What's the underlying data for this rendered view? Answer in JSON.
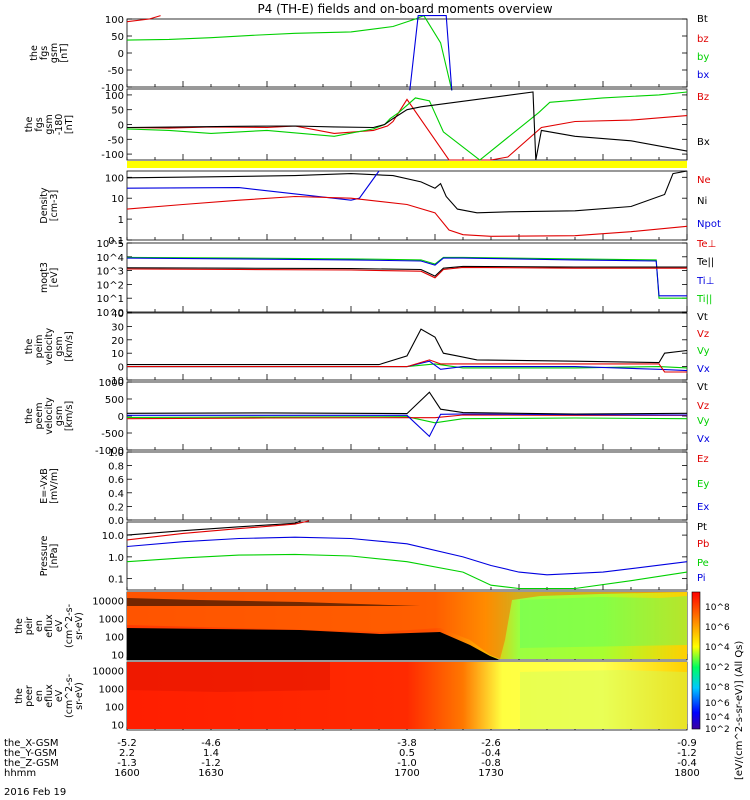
{
  "title": "P4 (TH-E) fields and on-board moments overview",
  "footer": {
    "rows": [
      {
        "label": "the_X-GSM",
        "values": [
          "-5.2",
          "-4.6",
          "-3.8",
          "-2.6",
          "-0.9"
        ]
      },
      {
        "label": "the_Y-GSM",
        "values": [
          "2.2",
          "1.4",
          "0.5",
          "-0.4",
          "-1.2"
        ]
      },
      {
        "label": "the_Z-GSM",
        "values": [
          "-1.3",
          "-1.2",
          "-1.0",
          "-0.8",
          "-0.4"
        ]
      },
      {
        "label": "hhmm",
        "values": [
          "1600",
          "1630",
          "1700",
          "1730",
          "1800"
        ]
      }
    ],
    "date": "2016 Feb 19"
  },
  "colorbar": {
    "label": "[eV/(cm^2-s-sr-eV)] (All Qs)",
    "ticks": [
      "10^8",
      "10^6",
      "10^4",
      "10^2"
    ],
    "ticks2": [
      "10^8",
      "10^6",
      "10^4",
      "10^2"
    ]
  },
  "colors": {
    "black": "#000000",
    "red": "#e00000",
    "green": "#00d000",
    "blue": "#0000e0",
    "yellow": "#ffff00"
  },
  "chart_data": [
    {
      "type": "line",
      "ylabel_lines": [
        "the",
        "fgs",
        "gsm",
        "[nT]"
      ],
      "ylim": [
        -100,
        100
      ],
      "yticks": [
        "100",
        "50",
        "0",
        "-50",
        "-100"
      ],
      "legend": [
        {
          "name": "Bt",
          "color": "#000000"
        },
        {
          "name": "bz",
          "color": "#e00000"
        },
        {
          "name": "by",
          "color": "#00d000"
        },
        {
          "name": "bx",
          "color": "#0000e0"
        }
      ],
      "series": [
        {
          "name": "bz",
          "color": "#e00000",
          "x": [
            1600,
            1608,
            1612
          ],
          "y": [
            92,
            100,
            110
          ]
        },
        {
          "name": "by",
          "color": "#00d000",
          "x": [
            1600,
            1615,
            1630,
            1645,
            1660,
            1680,
            1695,
            1703,
            1706,
            1712,
            1716
          ],
          "y": [
            38,
            40,
            45,
            52,
            58,
            62,
            78,
            100,
            110,
            30,
            -110
          ]
        },
        {
          "name": "bx",
          "color": "#0000e0",
          "x": [
            1701,
            1704,
            1714,
            1716
          ],
          "y": [
            -110,
            110,
            110,
            -110
          ]
        }
      ]
    },
    {
      "type": "line",
      "ylabel_lines": [
        "the",
        "fgs",
        "gsm",
        "-180",
        "[nT]"
      ],
      "ylim": [
        -120,
        120
      ],
      "yticks": [
        "100",
        "50",
        "0",
        "-50",
        "-100"
      ],
      "legend": [
        {
          "name": "Bz",
          "color": "#e00000"
        },
        {
          "name": "Bx",
          "color": "#000000"
        }
      ],
      "series": [
        {
          "name": "Bz",
          "color": "#e00000",
          "x": [
            1600,
            1615,
            1630,
            1650,
            1660,
            1674,
            1688,
            1693,
            1695,
            1697,
            1700,
            1715,
            1730,
            1736,
            1748,
            1760,
            1780,
            1800
          ],
          "y": [
            -10,
            -12,
            -8,
            -10,
            -5,
            -30,
            -20,
            -5,
            10,
            40,
            85,
            -120,
            -120,
            -110,
            -10,
            10,
            15,
            30
          ]
        },
        {
          "name": "by",
          "color": "#00d000",
          "x": [
            1600,
            1615,
            1630,
            1650,
            1674,
            1688,
            1692,
            1694,
            1697,
            1700,
            1703,
            1708,
            1713,
            1726,
            1747,
            1751,
            1770,
            1790,
            1800
          ],
          "y": [
            -15,
            -20,
            -30,
            -20,
            -40,
            -15,
            0,
            20,
            40,
            65,
            90,
            80,
            -25,
            -120,
            40,
            75,
            90,
            100,
            110
          ]
        },
        {
          "name": "Bx",
          "color": "#000000",
          "x": [
            1600,
            1620,
            1640,
            1660,
            1674,
            1688,
            1692,
            1695,
            1700,
            1705,
            1745,
            1746,
            1748,
            1760,
            1780,
            1800
          ],
          "y": [
            -10,
            -8,
            -6,
            -5,
            -8,
            -10,
            0,
            20,
            50,
            60,
            110,
            -120,
            -20,
            -40,
            -55,
            -90
          ]
        }
      ]
    },
    {
      "type": "heatmap",
      "series": [
        {
          "name": "band",
          "color": "#ffff00"
        }
      ]
    },
    {
      "type": "line",
      "scale": "log",
      "ylabel_lines": [
        "Density",
        "[cm-3]"
      ],
      "ylim": [
        0.1,
        200
      ],
      "yticks": [
        "100",
        "10",
        "1",
        "0.1"
      ],
      "legend": [
        {
          "name": "Ne",
          "color": "#e00000"
        },
        {
          "name": "Ni",
          "color": "#000000"
        },
        {
          "name": "Npot",
          "color": "#0000e0"
        }
      ],
      "series": [
        {
          "name": "Ni",
          "color": "#000000",
          "x": [
            1600,
            1630,
            1660,
            1680,
            1695,
            1705,
            1710,
            1712,
            1714,
            1718,
            1725,
            1735,
            1760,
            1780,
            1792,
            1795,
            1800
          ],
          "y": [
            95,
            105,
            120,
            150,
            120,
            60,
            30,
            50,
            12,
            3,
            2,
            2.2,
            2.5,
            4,
            15,
            150,
            200
          ]
        },
        {
          "name": "Npot",
          "color": "#0000e0",
          "x": [
            1600,
            1640,
            1680,
            1683,
            1690
          ],
          "y": [
            30,
            32,
            8,
            10,
            200
          ]
        },
        {
          "name": "Ne",
          "color": "#e00000",
          "x": [
            1600,
            1620,
            1640,
            1660,
            1680,
            1700,
            1710,
            1715,
            1720,
            1730,
            1760,
            1780,
            1800
          ],
          "y": [
            3,
            5,
            8,
            12,
            10,
            5,
            2,
            0.3,
            0.18,
            0.15,
            0.16,
            0.25,
            0.45
          ]
        }
      ]
    },
    {
      "type": "line",
      "scale": "log",
      "ylabel_lines": [
        "moqt3",
        "[eV]"
      ],
      "ylim": [
        1,
        100000
      ],
      "yticks": [
        "10^5",
        "10^4",
        "10^3",
        "10^2",
        "10^1",
        "10^0"
      ],
      "legend": [
        {
          "name": "Te⊥",
          "color": "#e00000"
        },
        {
          "name": "Te||",
          "color": "#000000"
        },
        {
          "name": "Ti⊥",
          "color": "#0000e0"
        },
        {
          "name": "Ti||",
          "color": "#00d000"
        }
      ],
      "series": [
        {
          "name": "Ti||",
          "color": "#00d000",
          "x": [
            1600,
            1640,
            1680,
            1705,
            1710,
            1713,
            1720,
            1760,
            1789,
            1790,
            1800
          ],
          "y": [
            9000,
            8000,
            7000,
            6000,
            3000,
            9000,
            9000,
            7000,
            6000,
            10,
            10
          ]
        },
        {
          "name": "Ti⊥",
          "color": "#0000e0",
          "x": [
            1600,
            1640,
            1680,
            1705,
            1710,
            1713,
            1720,
            1760,
            1789,
            1790,
            1800
          ],
          "y": [
            8000,
            7000,
            6000,
            5000,
            2500,
            8000,
            8000,
            6000,
            5000,
            15,
            15
          ]
        },
        {
          "name": "Te||",
          "color": "#000000",
          "x": [
            1600,
            1640,
            1680,
            1705,
            1710,
            1713,
            1720,
            1760,
            1790,
            1800
          ],
          "y": [
            1600,
            1500,
            1400,
            1200,
            400,
            1500,
            2000,
            1800,
            1800,
            1800
          ]
        },
        {
          "name": "Te⊥",
          "color": "#e00000",
          "x": [
            1600,
            1640,
            1680,
            1705,
            1710,
            1713,
            1720,
            1760,
            1790,
            1800
          ],
          "y": [
            1300,
            1200,
            1100,
            900,
            300,
            1200,
            1700,
            1500,
            1500,
            1500
          ]
        }
      ]
    },
    {
      "type": "line",
      "ylabel_lines": [
        "the",
        "peim",
        "velocity",
        "gsm",
        "[km/s]"
      ],
      "ylim": [
        -10,
        40
      ],
      "yticks": [
        "40",
        "30",
        "20",
        "10",
        "0",
        "-10"
      ],
      "legend": [
        {
          "name": "Vt",
          "color": "#000000"
        },
        {
          "name": "Vz",
          "color": "#e00000"
        },
        {
          "name": "Vy",
          "color": "#00d000"
        },
        {
          "name": "Vx",
          "color": "#0000e0"
        }
      ],
      "series": [
        {
          "name": "Vy",
          "color": "#00d000",
          "x": [
            1600,
            1650,
            1700,
            1710,
            1720,
            1760,
            1790,
            1800
          ],
          "y": [
            0,
            0,
            0,
            2,
            -1,
            -1,
            0,
            -1
          ]
        },
        {
          "name": "Vx",
          "color": "#0000e0",
          "x": [
            1600,
            1650,
            1700,
            1708,
            1712,
            1720,
            1760,
            1790,
            1800
          ],
          "y": [
            0,
            0,
            0,
            4,
            -2,
            0,
            0,
            -2,
            -3
          ]
        },
        {
          "name": "Vz",
          "color": "#e00000",
          "x": [
            1600,
            1650,
            1700,
            1708,
            1712,
            1720,
            1760,
            1790,
            1792,
            1800
          ],
          "y": [
            0,
            0,
            0,
            5,
            2,
            2,
            2,
            2,
            -4,
            -4
          ]
        },
        {
          "name": "Vt",
          "color": "#000000",
          "x": [
            1600,
            1650,
            1690,
            1700,
            1705,
            1710,
            1713,
            1718,
            1725,
            1760,
            1790,
            1792,
            1800
          ],
          "y": [
            1.5,
            1.5,
            1.5,
            8,
            28,
            22,
            10,
            8,
            5,
            4,
            3,
            10,
            12
          ]
        }
      ]
    },
    {
      "type": "line",
      "ylabel_lines": [
        "the",
        "peem",
        "velocity",
        "gsm",
        "[km/s]"
      ],
      "ylim": [
        -1000,
        1000
      ],
      "yticks": [
        "1000",
        "500",
        "0",
        "-500",
        "-1000"
      ],
      "legend": [
        {
          "name": "Vt",
          "color": "#000000"
        },
        {
          "name": "Vz",
          "color": "#e00000"
        },
        {
          "name": "Vy",
          "color": "#00d000"
        },
        {
          "name": "Vx",
          "color": "#0000e0"
        }
      ],
      "series": [
        {
          "name": "Vy",
          "color": "#00d000",
          "x": [
            1600,
            1650,
            1700,
            1710,
            1720,
            1760,
            1800
          ],
          "y": [
            -40,
            -30,
            -20,
            -200,
            -80,
            -60,
            -80
          ]
        },
        {
          "name": "Vz",
          "color": "#e00000",
          "x": [
            1600,
            1650,
            1700,
            1710,
            1720,
            1760,
            1800
          ],
          "y": [
            -80,
            -60,
            -50,
            -50,
            30,
            20,
            20
          ]
        },
        {
          "name": "Vx",
          "color": "#0000e0",
          "x": [
            1600,
            1650,
            1700,
            1708,
            1712,
            1720,
            1760,
            1800
          ],
          "y": [
            20,
            20,
            20,
            -600,
            50,
            60,
            40,
            30
          ]
        },
        {
          "name": "Vt",
          "color": "#000000",
          "x": [
            1600,
            1650,
            1700,
            1708,
            1712,
            1720,
            1760,
            1800
          ],
          "y": [
            80,
            90,
            70,
            700,
            200,
            100,
            60,
            80
          ]
        }
      ]
    },
    {
      "type": "line",
      "ylabel_lines": [
        "E=-VxB",
        "[mV/m]"
      ],
      "ylim": [
        0,
        1
      ],
      "yticks": [
        "1.0",
        "0.8",
        "0.6",
        "0.4",
        "0.2",
        "0.0"
      ],
      "legend": [
        {
          "name": "Ez",
          "color": "#e00000"
        },
        {
          "name": "Ey",
          "color": "#00d000"
        },
        {
          "name": "Ex",
          "color": "#0000e0"
        }
      ],
      "series": []
    },
    {
      "type": "line",
      "scale": "log",
      "ylabel_lines": [
        "Pressure",
        "[nPa]"
      ],
      "ylim": [
        0.03,
        40
      ],
      "yticks": [
        "10.0",
        "1.0",
        "0.1"
      ],
      "legend": [
        {
          "name": "Pt",
          "color": "#000000"
        },
        {
          "name": "Pb",
          "color": "#e00000"
        },
        {
          "name": "Pe",
          "color": "#00d000"
        },
        {
          "name": "Pi",
          "color": "#0000e0"
        }
      ],
      "series": [
        {
          "name": "Pt",
          "color": "#000000",
          "x": [
            1600,
            1620,
            1640,
            1660,
            1662
          ],
          "y": [
            10,
            16,
            24,
            35,
            45
          ]
        },
        {
          "name": "Pb",
          "color": "#e00000",
          "x": [
            1600,
            1620,
            1640,
            1660,
            1665
          ],
          "y": [
            6,
            12,
            20,
            32,
            45
          ]
        },
        {
          "name": "Pi",
          "color": "#0000e0",
          "x": [
            1600,
            1620,
            1640,
            1660,
            1680,
            1700,
            1720,
            1730,
            1740,
            1750,
            1770,
            1800
          ],
          "y": [
            3,
            5,
            7,
            8,
            7,
            4,
            1,
            0.4,
            0.2,
            0.15,
            0.2,
            0.6
          ]
        },
        {
          "name": "Pe",
          "color": "#00d000",
          "x": [
            1600,
            1620,
            1640,
            1660,
            1680,
            1700,
            1720,
            1730,
            1740,
            1760,
            1780,
            1800
          ],
          "y": [
            0.6,
            0.9,
            1.2,
            1.3,
            1.1,
            0.6,
            0.2,
            0.05,
            0.035,
            0.035,
            0.08,
            0.2
          ]
        }
      ]
    },
    {
      "type": "heatmap",
      "ylabel_lines": [
        "the",
        "peir",
        "en",
        "eflux",
        "eV",
        "(cm^2-s-",
        "sr-eV)"
      ],
      "ylim": [
        5,
        30000
      ],
      "scale": "log",
      "yticks": [
        "10000",
        "1000",
        "100",
        "10"
      ]
    },
    {
      "type": "heatmap",
      "ylabel_lines": [
        "the",
        "peer",
        "en",
        "eflux",
        "eV",
        "(cm^2-s-",
        "sr-eV)"
      ],
      "ylim": [
        5,
        30000
      ],
      "scale": "log",
      "yticks": [
        "10000",
        "1000",
        "100",
        "10"
      ]
    }
  ]
}
